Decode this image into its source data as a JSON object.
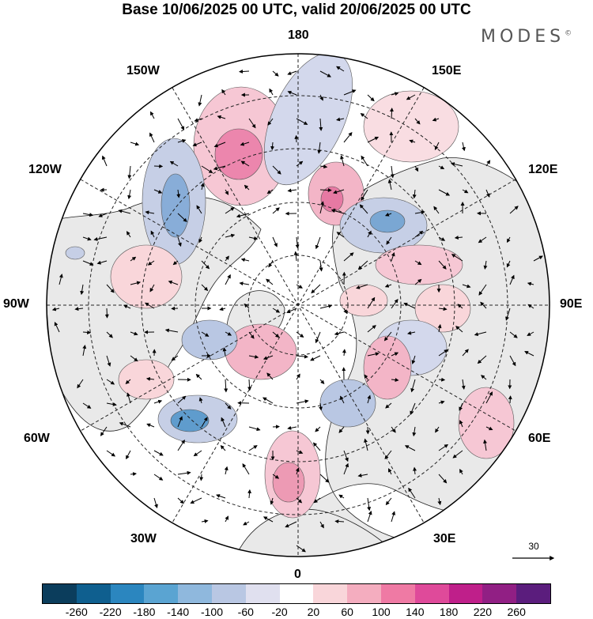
{
  "title": "Base 10/06/2025 00 UTC, valid 20/06/2025 00 UTC",
  "brand": "MODES",
  "brand_mark": "©",
  "longitude_labels": {
    "top": "180",
    "bottom": "0",
    "left": "90W",
    "right": "90E",
    "upper_left_1": "150W",
    "upper_left_2": "120W",
    "upper_right_1": "150E",
    "upper_right_2": "120E",
    "lower_left_1": "60W",
    "lower_left_2": "30W",
    "lower_right_1": "60E",
    "lower_right_2": "30E"
  },
  "reference_vector_label": "30",
  "colorbar": {
    "colors": [
      "#0b3d5c",
      "#0f5f8f",
      "#2b86bf",
      "#5aa4d2",
      "#8fb8dd",
      "#b9c7e3",
      "#e0e0ef",
      "#ffffff",
      "#f9d6da",
      "#f4adbf",
      "#ef7aa4",
      "#df4a9a",
      "#bf1f8a",
      "#911f84",
      "#5b1d7d"
    ],
    "tick_labels": [
      "-260",
      "-220",
      "-180",
      "-140",
      "-100",
      "-60",
      "-20",
      "20",
      "60",
      "100",
      "140",
      "180",
      "220",
      "260"
    ]
  },
  "anomalies": [
    {
      "name": "pos",
      "color": "#f6c7d4",
      "level": 60
    },
    {
      "name": "strong-pos",
      "color": "#ec86ad",
      "level": 140
    },
    {
      "name": "neg",
      "color": "#bec9e3",
      "level": -60
    },
    {
      "name": "strong-neg",
      "color": "#6fa6d3",
      "level": -140
    }
  ]
}
